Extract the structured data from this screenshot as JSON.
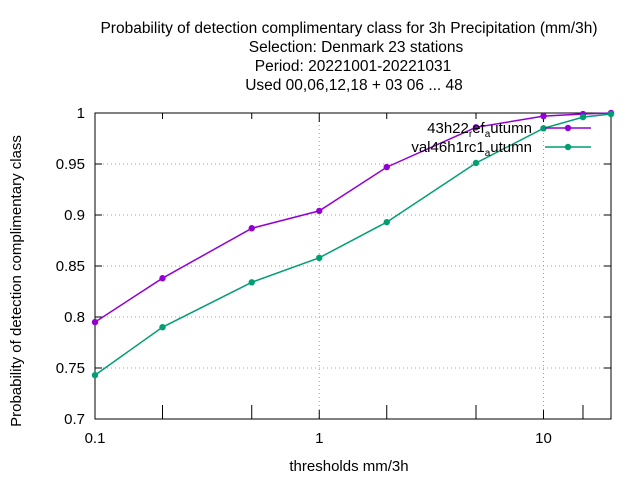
{
  "chart_data": {
    "type": "line",
    "title_lines": [
      "Probability of detection complimentary class  for 3h Precipitation (mm/3h)",
      "Selection: Denmark     23 stations",
      "Period: 20221001-20221031",
      "Used  00,06,12,18  + 03 06 ... 48"
    ],
    "xlabel": "thresholds mm/3h",
    "ylabel": "Probability of detection complimentary class",
    "x_scale": "log",
    "xlim": [
      0.1,
      20
    ],
    "ylim": [
      0.7,
      1.0
    ],
    "x_ticks": [
      0.1,
      1,
      10
    ],
    "x_tick_labels": [
      "0.1",
      "1",
      "10"
    ],
    "x_minor_ticks": [
      0.2,
      0.5,
      2,
      5,
      15,
      20
    ],
    "y_ticks": [
      0.7,
      0.75,
      0.8,
      0.85,
      0.9,
      0.95,
      1.0
    ],
    "y_tick_labels": [
      "0.7",
      "0.75",
      "0.8",
      "0.85",
      "0.9",
      "0.95",
      "1"
    ],
    "grid": true,
    "legend_position": "top-right",
    "x": [
      0.1,
      0.2,
      0.5,
      1,
      2,
      5,
      10,
      15,
      20
    ],
    "series": [
      {
        "name_main": "43h22",
        "name_sub1": "r",
        "name_mid": "ef",
        "name_sub2": "a",
        "name_end": "utumn",
        "color": "#9400d3",
        "values": [
          0.795,
          0.838,
          0.887,
          0.904,
          0.947,
          0.986,
          0.997,
          0.999,
          1.0
        ]
      },
      {
        "name_main": "val46h1rc1",
        "name_sub1": "a",
        "name_mid": "",
        "name_sub2": "",
        "name_end": "utumn",
        "color": "#009e73",
        "values": [
          0.743,
          0.79,
          0.834,
          0.858,
          0.893,
          0.951,
          0.985,
          0.996,
          0.999
        ]
      }
    ]
  }
}
